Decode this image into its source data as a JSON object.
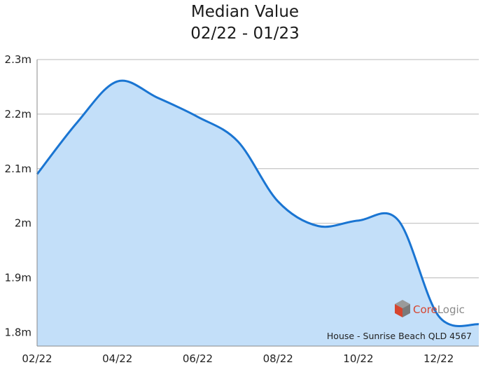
{
  "chart_data": {
    "type": "area",
    "title": "Median Value",
    "subtitle": "02/22 - 01/23",
    "xlabel": "",
    "ylabel": "",
    "x": [
      "02/22",
      "03/22",
      "04/22",
      "05/22",
      "06/22",
      "07/22",
      "08/22",
      "09/22",
      "10/22",
      "11/22",
      "12/22",
      "01/23"
    ],
    "x_tick_labels": [
      "02/22",
      "04/22",
      "06/22",
      "08/22",
      "10/22",
      "12/22"
    ],
    "series": [
      {
        "values": [
          2.09,
          2.185,
          2.26,
          2.23,
          2.195,
          2.15,
          2.04,
          1.995,
          2.005,
          2.005,
          1.83,
          1.815
        ]
      }
    ],
    "y_ticks": [
      1.8,
      1.9,
      2.0,
      2.1,
      2.2,
      2.3
    ],
    "y_tick_labels": [
      "1.8m",
      "1.9m",
      "2m",
      "2.1m",
      "2.2m",
      "2.3m"
    ],
    "ylim": [
      1.775,
      2.3
    ],
    "grid": true,
    "colors": {
      "line": "#1a75d2",
      "fill": "#c3dff9",
      "grid": "#b8b8b8"
    },
    "caption": "House - Sunrise Beach QLD 4567",
    "watermark": "CoreLogic"
  }
}
